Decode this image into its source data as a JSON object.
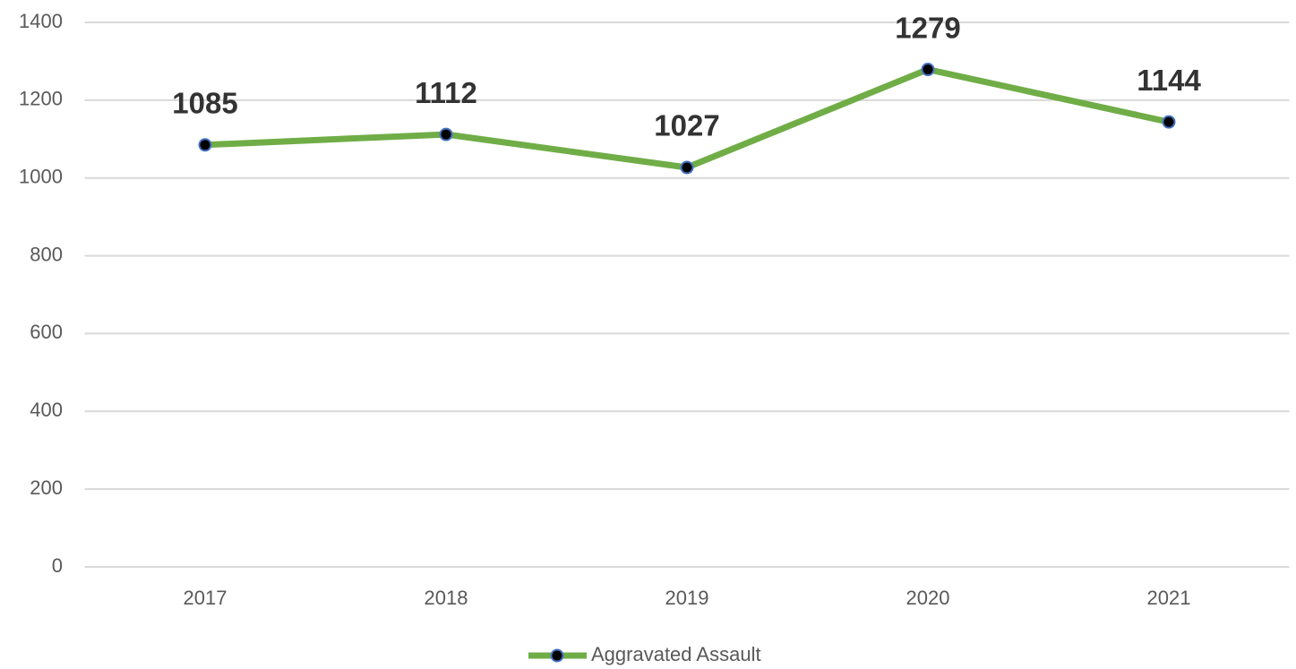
{
  "chart_data": {
    "type": "line",
    "categories": [
      "2017",
      "2018",
      "2019",
      "2020",
      "2021"
    ],
    "series": [
      {
        "name": "Aggravated Assault",
        "color": "#70ad47",
        "marker_color": "#000000",
        "marker_edge": "#4472c4",
        "values": [
          1085,
          1112,
          1027,
          1279,
          1144
        ]
      }
    ],
    "ylim": [
      0,
      1400
    ],
    "yticks": [
      0,
      200,
      400,
      600,
      800,
      1000,
      1200,
      1400
    ],
    "grid": true,
    "legend": "bottom"
  }
}
